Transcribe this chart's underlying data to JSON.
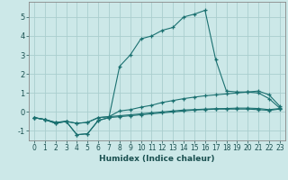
{
  "xlabel": "Humidex (Indice chaleur)",
  "ylabel": "",
  "background_color": "#cce8e8",
  "grid_color": "#aacece",
  "line_color": "#1a7070",
  "xlim": [
    -0.5,
    23.5
  ],
  "ylim": [
    -1.5,
    5.8
  ],
  "yticks": [
    -1,
    0,
    1,
    2,
    3,
    4,
    5
  ],
  "xticks": [
    0,
    1,
    2,
    3,
    4,
    5,
    6,
    7,
    8,
    9,
    10,
    11,
    12,
    13,
    14,
    15,
    16,
    17,
    18,
    19,
    20,
    21,
    22,
    23
  ],
  "series": [
    {
      "x": [
        0,
        1,
        2,
        3,
        4,
        5,
        6,
        7,
        8,
        9,
        10,
        11,
        12,
        13,
        14,
        15,
        16,
        17,
        18,
        19,
        20,
        21,
        22,
        23
      ],
      "y": [
        -0.3,
        -0.4,
        -0.6,
        -0.5,
        -1.2,
        -1.15,
        -0.45,
        -0.3,
        -0.25,
        -0.2,
        -0.15,
        -0.1,
        -0.05,
        0.0,
        0.05,
        0.1,
        0.12,
        0.15,
        0.15,
        0.15,
        0.15,
        0.12,
        0.08,
        0.15
      ]
    },
    {
      "x": [
        0,
        1,
        2,
        3,
        4,
        5,
        6,
        7,
        8,
        9,
        10,
        11,
        12,
        13,
        14,
        15,
        16,
        17,
        18,
        19,
        20,
        21,
        22,
        23
      ],
      "y": [
        -0.3,
        -0.4,
        -0.6,
        -0.5,
        -1.2,
        -1.15,
        -0.45,
        -0.3,
        2.4,
        3.0,
        3.85,
        4.0,
        4.3,
        4.45,
        5.0,
        5.15,
        5.35,
        2.75,
        1.1,
        1.05,
        1.05,
        1.0,
        0.7,
        0.2
      ]
    },
    {
      "x": [
        0,
        1,
        2,
        3,
        4,
        5,
        6,
        7,
        8,
        9,
        10,
        11,
        12,
        13,
        14,
        15,
        16,
        17,
        18,
        19,
        20,
        21,
        22,
        23
      ],
      "y": [
        -0.3,
        -0.4,
        -0.55,
        -0.5,
        -0.6,
        -0.55,
        -0.3,
        -0.25,
        0.05,
        0.12,
        0.25,
        0.35,
        0.5,
        0.6,
        0.7,
        0.78,
        0.85,
        0.9,
        0.95,
        1.0,
        1.05,
        1.1,
        0.9,
        0.3
      ]
    },
    {
      "x": [
        0,
        1,
        2,
        3,
        4,
        5,
        6,
        7,
        8,
        9,
        10,
        11,
        12,
        13,
        14,
        15,
        16,
        17,
        18,
        19,
        20,
        21,
        22,
        23
      ],
      "y": [
        -0.3,
        -0.4,
        -0.55,
        -0.5,
        -0.6,
        -0.55,
        -0.3,
        -0.25,
        -0.2,
        -0.15,
        -0.1,
        -0.05,
        0.0,
        0.05,
        0.1,
        0.12,
        0.15,
        0.17,
        0.18,
        0.2,
        0.2,
        0.18,
        0.12,
        0.18
      ]
    }
  ]
}
